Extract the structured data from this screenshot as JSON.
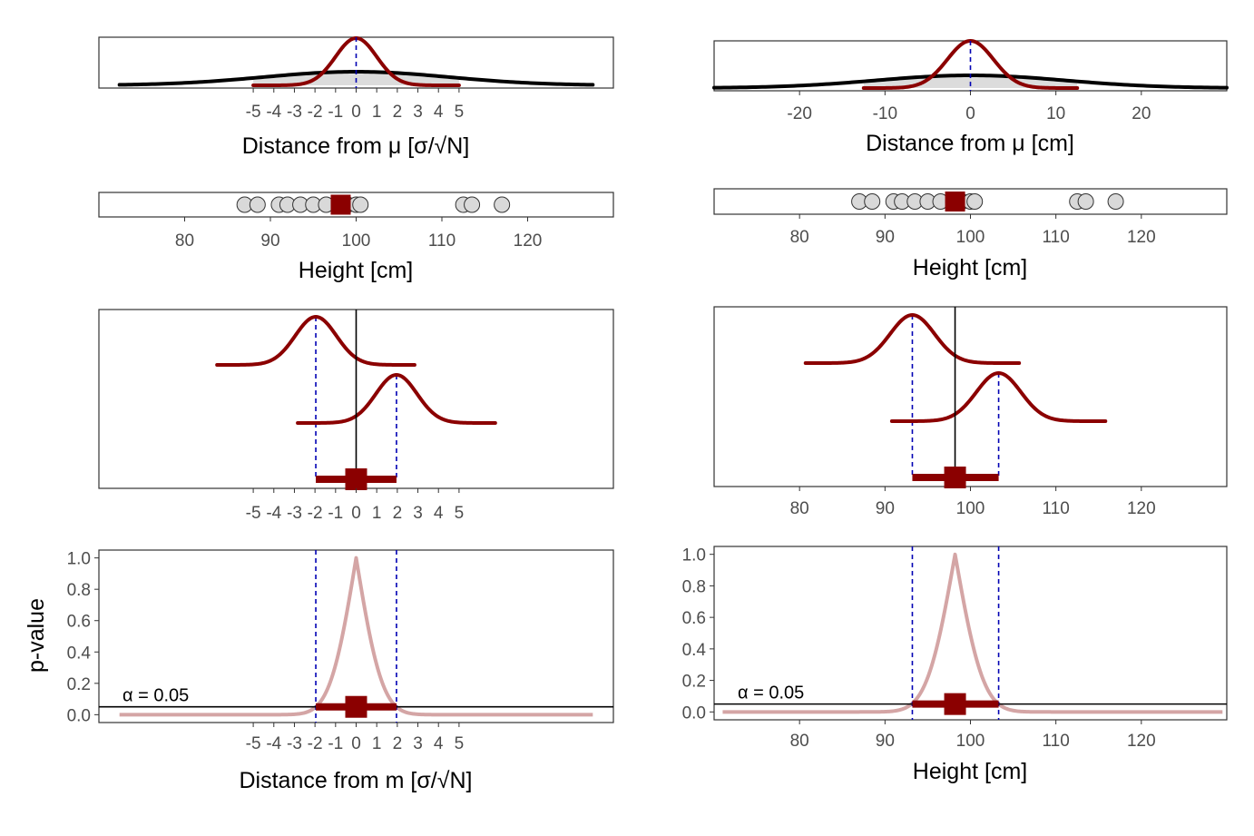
{
  "colors": {
    "curve": "#8b0000",
    "pcurve": "#d4a5a5",
    "broad": "#000000",
    "shade": "#dcdcdc",
    "dashed": "#0000b4",
    "point_fill": "#d9d9d9",
    "tick_text": "#4d4d4d"
  },
  "labels": {
    "left_density_xlabel": "Distance from μ [σ/√N]",
    "right_density_xlabel": "Distance from μ [cm]",
    "height_xlabel": "Height [cm]",
    "left_p_xlabel": "Distance from m [σ/√N]",
    "p_ylabel": "p-value",
    "alpha_label": "α  =  0.05"
  },
  "chart_data": [
    {
      "id": "left-density",
      "type": "line",
      "title": "",
      "xlabel": "Distance from μ [σ/√N]",
      "xlim": [
        -12.5,
        12.5
      ],
      "xticks": [
        "-5",
        "-4",
        "-3",
        "-2",
        "-1",
        "0",
        "1",
        "2",
        "3",
        "4",
        "5"
      ],
      "series": [
        {
          "shape": "normal",
          "mean": 0,
          "sd": 1,
          "range": [
            -5,
            5
          ],
          "color": "curve"
        },
        {
          "shape": "normal",
          "mean": 0,
          "sd": 4.5,
          "range": [
            -11.5,
            11.5
          ],
          "color": "broad"
        }
      ],
      "reference_line": 0
    },
    {
      "id": "right-density",
      "type": "line",
      "title": "",
      "xlabel": "Distance from μ [cm]",
      "xlim": [
        -30,
        30
      ],
      "xticks": [
        "-20",
        "-10",
        "0",
        "10",
        "20"
      ],
      "series": [
        {
          "shape": "normal",
          "mean": 0,
          "sd": 2.7,
          "range": [
            -12.5,
            12.5
          ],
          "color": "curve"
        },
        {
          "shape": "normal",
          "mean": 0,
          "sd": 11,
          "range": [
            -30,
            30
          ],
          "color": "broad"
        }
      ],
      "reference_line": 0
    },
    {
      "id": "left-points",
      "type": "scatter",
      "xlabel": "Height [cm]",
      "xlim": [
        70,
        130
      ],
      "xticks": [
        "80",
        "90",
        "100",
        "110",
        "120"
      ],
      "x": [
        87,
        88.5,
        91,
        92,
        93.5,
        95,
        96.5,
        98,
        99,
        100,
        100.5,
        112.5,
        113.5,
        117
      ],
      "mean": 98.2
    },
    {
      "id": "right-points",
      "type": "scatter",
      "xlabel": "Height [cm]",
      "xlim": [
        70,
        130
      ],
      "xticks": [
        "80",
        "90",
        "100",
        "110",
        "120"
      ],
      "x": [
        87,
        88.5,
        91,
        92,
        93.5,
        95,
        96.5,
        98,
        99,
        100,
        100.5,
        112.5,
        113.5,
        117
      ],
      "mean": 98.2
    },
    {
      "id": "left-ci",
      "type": "line",
      "xlim": [
        -12.5,
        12.5
      ],
      "xticks": [
        "-5",
        "-4",
        "-3",
        "-2",
        "-1",
        "0",
        "1",
        "2",
        "3",
        "4",
        "5"
      ],
      "lower": -1.96,
      "upper": 1.96,
      "estimate": 0,
      "sd": 1,
      "half_width": 4.8,
      "reference_line": 0
    },
    {
      "id": "right-ci",
      "type": "line",
      "xlim": [
        70,
        130
      ],
      "xticks": [
        "80",
        "90",
        "100",
        "110",
        "120"
      ],
      "lower": 93.2,
      "upper": 103.3,
      "estimate": 98.2,
      "sd": 2.6,
      "half_width": 12.5,
      "reference_line": 98.2
    },
    {
      "id": "left-pvalue",
      "type": "line",
      "xlabel": "Distance from m [σ/√N]",
      "ylabel": "p-value",
      "xlim": [
        -12.5,
        12.5
      ],
      "ylim": [
        -0.05,
        1.05
      ],
      "xticks": [
        "-5",
        "-4",
        "-3",
        "-2",
        "-1",
        "0",
        "1",
        "2",
        "3",
        "4",
        "5"
      ],
      "yticks": [
        "0.0",
        "0.2",
        "0.4",
        "0.6",
        "0.8",
        "1.0"
      ],
      "curve_range": [
        -11.5,
        11.5
      ],
      "estimate": 0,
      "sd": 1,
      "lower": -1.96,
      "upper": 1.96,
      "alpha": 0.05,
      "alpha_label": "α  =  0.05"
    },
    {
      "id": "right-pvalue",
      "type": "line",
      "xlabel": "Height [cm]",
      "xlim": [
        70,
        130
      ],
      "ylim": [
        -0.05,
        1.05
      ],
      "xticks": [
        "80",
        "90",
        "100",
        "110",
        "120"
      ],
      "yticks": [
        "0.0",
        "0.2",
        "0.4",
        "0.6",
        "0.8",
        "1.0"
      ],
      "curve_range": [
        71,
        129.5
      ],
      "estimate": 98.2,
      "sd": 2.6,
      "lower": 93.2,
      "upper": 103.3,
      "alpha": 0.05,
      "alpha_label": "α  =  0.05"
    }
  ]
}
